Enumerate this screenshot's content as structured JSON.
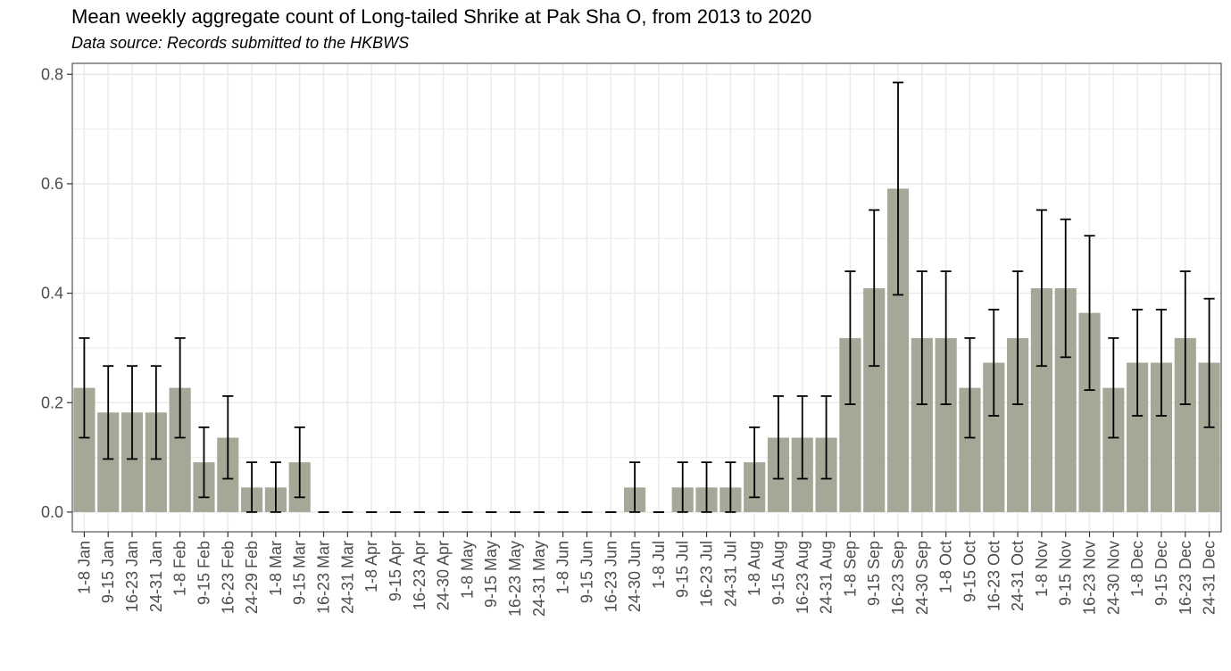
{
  "colors": {
    "bar": "#a6a797",
    "error_bar": "#000000",
    "grid": "#ebebeb",
    "panel_border": "#333333",
    "tick_text": "#4d4d4d"
  },
  "chart_data": {
    "type": "bar",
    "title": "Mean weekly aggregate count of Long-tailed Shrike at Pak Sha O, from 2013 to 2020",
    "subtitle": "Data source: Records submitted to the HKBWS",
    "xlabel": "",
    "ylabel": "",
    "ylim": [
      -0.036,
      0.82
    ],
    "yticks": [
      0.0,
      0.2,
      0.4,
      0.6,
      0.8
    ],
    "ytick_labels": [
      "0.0",
      "0.2",
      "0.4",
      "0.6",
      "0.8"
    ],
    "grid": true,
    "categories": [
      "1-8 Jan",
      "9-15 Jan",
      "16-23 Jan",
      "24-31 Jan",
      "1-8 Feb",
      "9-15 Feb",
      "16-23 Feb",
      "24-29 Feb",
      "1-8 Mar",
      "9-15 Mar",
      "16-23 Mar",
      "24-31 Mar",
      "1-8 Apr",
      "9-15 Apr",
      "16-23 Apr",
      "24-30 Apr",
      "1-8 May",
      "9-15 May",
      "16-23 May",
      "24-31 May",
      "1-8 Jun",
      "9-15 Jun",
      "16-23 Jun",
      "24-30 Jun",
      "1-8 Jul",
      "9-15 Jul",
      "16-23 Jul",
      "24-31 Jul",
      "1-8 Aug",
      "9-15 Aug",
      "16-23 Aug",
      "24-31 Aug",
      "1-8 Sep",
      "9-15 Sep",
      "16-23 Sep",
      "24-30 Sep",
      "1-8 Oct",
      "9-15 Oct",
      "16-23 Oct",
      "24-31 Oct",
      "1-8 Nov",
      "9-15 Nov",
      "16-23 Nov",
      "24-30 Nov",
      "1-8 Dec",
      "9-15 Dec",
      "16-23 Dec",
      "24-31 Dec"
    ],
    "values": [
      0.227,
      0.182,
      0.182,
      0.182,
      0.227,
      0.091,
      0.136,
      0.045,
      0.045,
      0.091,
      0,
      0,
      0,
      0,
      0,
      0,
      0,
      0,
      0,
      0,
      0,
      0,
      0,
      0.045,
      0,
      0.045,
      0.045,
      0.045,
      0.091,
      0.136,
      0.136,
      0.136,
      0.318,
      0.409,
      0.591,
      0.318,
      0.318,
      0.227,
      0.273,
      0.318,
      0.409,
      0.409,
      0.364,
      0.227,
      0.273,
      0.273,
      0.318,
      0.273
    ],
    "error_low": [
      0.136,
      0.097,
      0.097,
      0.097,
      0.136,
      0.027,
      0.061,
      0,
      0,
      0.027,
      0,
      0,
      0,
      0,
      0,
      0,
      0,
      0,
      0,
      0,
      0,
      0,
      0,
      0,
      0,
      0,
      0,
      0,
      0.027,
      0.061,
      0.061,
      0.061,
      0.197,
      0.267,
      0.397,
      0.197,
      0.197,
      0.136,
      0.176,
      0.197,
      0.267,
      0.283,
      0.223,
      0.136,
      0.176,
      0.176,
      0.197,
      0.155
    ],
    "error_high": [
      0.318,
      0.267,
      0.267,
      0.267,
      0.318,
      0.155,
      0.212,
      0.091,
      0.091,
      0.155,
      0,
      0,
      0,
      0,
      0,
      0,
      0,
      0,
      0,
      0,
      0,
      0,
      0,
      0.091,
      0,
      0.091,
      0.091,
      0.091,
      0.155,
      0.212,
      0.212,
      0.212,
      0.44,
      0.552,
      0.785,
      0.44,
      0.44,
      0.318,
      0.37,
      0.44,
      0.552,
      0.535,
      0.505,
      0.318,
      0.37,
      0.37,
      0.44,
      0.39
    ]
  }
}
